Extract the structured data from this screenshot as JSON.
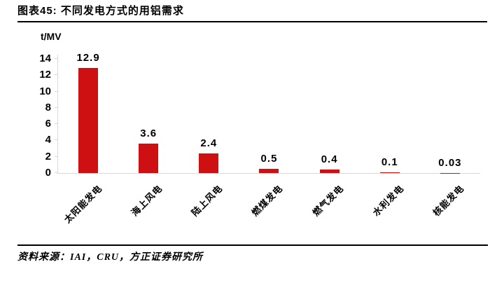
{
  "header": {
    "title": "图表45: 不同发电方式的用铝需求"
  },
  "footer": {
    "source": "资料来源：IAI，CRU，方正证券研究所"
  },
  "chart_data": {
    "type": "bar",
    "title": "图表45: 不同发电方式的用铝需求",
    "unit_label": "t/MV",
    "categories": [
      "太阳能发电",
      "海上风电",
      "陆上风电",
      "燃煤发电",
      "燃气发电",
      "水利发电",
      "核能发电"
    ],
    "values": [
      12.9,
      3.6,
      2.4,
      0.5,
      0.4,
      0.1,
      0.03
    ],
    "value_labels": [
      "12.9",
      "3.6",
      "2.4",
      "0.5",
      "0.4",
      "0.1",
      "0.03"
    ],
    "xlabel": "",
    "ylabel": "t/MV",
    "ylim": [
      0,
      14
    ],
    "yticks": [
      0,
      2,
      4,
      6,
      8,
      10,
      12,
      14
    ],
    "grid": false,
    "legend": "none",
    "bar_color": "#ce1013",
    "axis_color": "#d9d9d9",
    "text_color": "#000000"
  }
}
